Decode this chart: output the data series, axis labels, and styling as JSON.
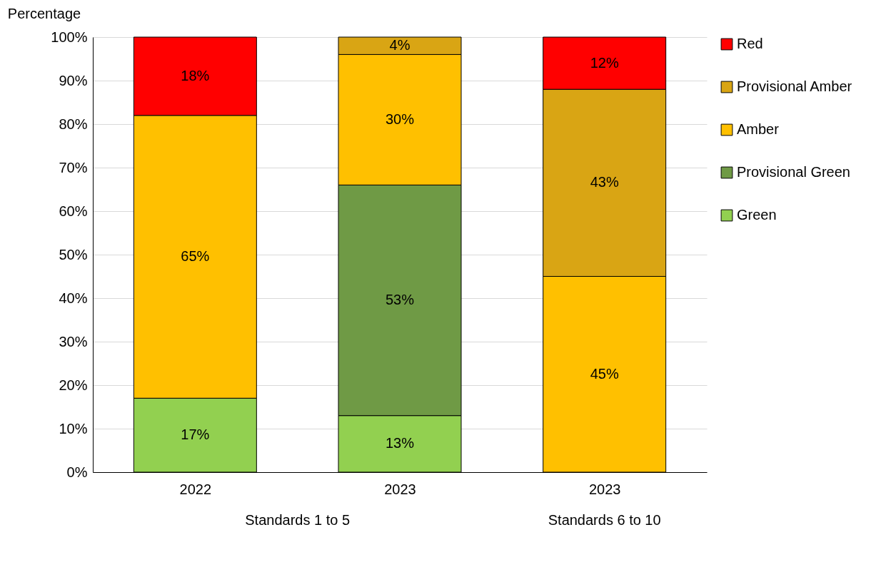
{
  "chart_data": {
    "type": "bar",
    "stacked": true,
    "ylabel": "Percentage",
    "categories": [
      "2022",
      "2023",
      "2023"
    ],
    "series": [
      {
        "name": "Green",
        "color": "#92d050",
        "values": [
          17,
          13,
          0
        ],
        "value_labels": [
          "17%",
          "13%",
          null
        ]
      },
      {
        "name": "Provisional Green",
        "color": "#6f9a45",
        "values": [
          0,
          53,
          0
        ],
        "value_labels": [
          null,
          "53%",
          null
        ]
      },
      {
        "name": "Amber",
        "color": "#ffc000",
        "values": [
          65,
          30,
          45
        ],
        "value_labels": [
          "65%",
          "30%",
          "45%"
        ]
      },
      {
        "name": "Provisional Amber",
        "color": "#d9a514",
        "values": [
          0,
          4,
          43
        ],
        "value_labels": [
          null,
          "4%",
          "43%"
        ]
      },
      {
        "name": "Red",
        "color": "#ff0000",
        "values": [
          18,
          0,
          12
        ],
        "value_labels": [
          "18%",
          null,
          "12%"
        ]
      }
    ],
    "ylim": [
      0,
      100
    ],
    "yticks": [
      {
        "value": 0,
        "label": "0%"
      },
      {
        "value": 10,
        "label": "10%"
      },
      {
        "value": 20,
        "label": "20%"
      },
      {
        "value": 30,
        "label": "30%"
      },
      {
        "value": 40,
        "label": "40%"
      },
      {
        "value": 50,
        "label": "50%"
      },
      {
        "value": 60,
        "label": "60%"
      },
      {
        "value": 70,
        "label": "70%"
      },
      {
        "value": 80,
        "label": "80%"
      },
      {
        "value": 90,
        "label": "90%"
      },
      {
        "value": 100,
        "label": "100%"
      }
    ],
    "annotations": [
      "Standards 1 to 5",
      "Standards 6 to 10"
    ],
    "grid": "y",
    "legend": "right"
  }
}
